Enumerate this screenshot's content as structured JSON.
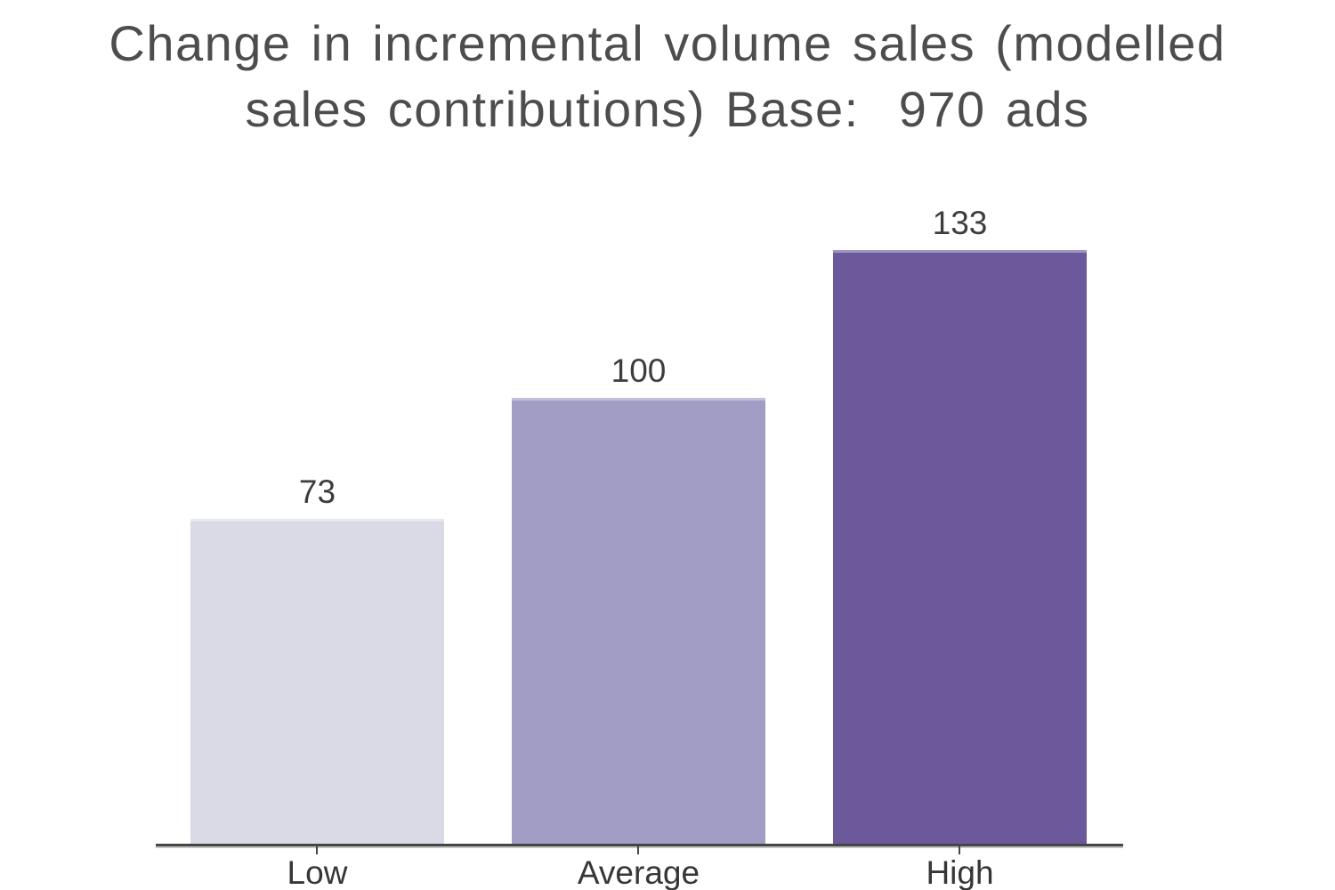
{
  "chart_data": {
    "type": "bar",
    "title": "Change in incremental volume sales (modelled sales contributions) Base:  970 ads",
    "title_lines": {
      "line1": "Change in incremental volume sales (modelled",
      "line2": "sales contributions) Base:  970 ads"
    },
    "categories": [
      "Low",
      "Average",
      "High"
    ],
    "values": [
      73,
      100,
      133
    ],
    "bar_colors": [
      "#d9dae6",
      "#a19dc5",
      "#6c599c"
    ],
    "xlabel": "",
    "ylabel": "",
    "ylim": [
      0,
      140
    ],
    "grid": false,
    "legend": "none",
    "value_labels_shown": true,
    "colors": {
      "title": "#4d4d4d",
      "value_label": "#3d3d3d",
      "axis_label": "#363636",
      "axis_line": "#454545",
      "background": "#ffffff"
    }
  }
}
